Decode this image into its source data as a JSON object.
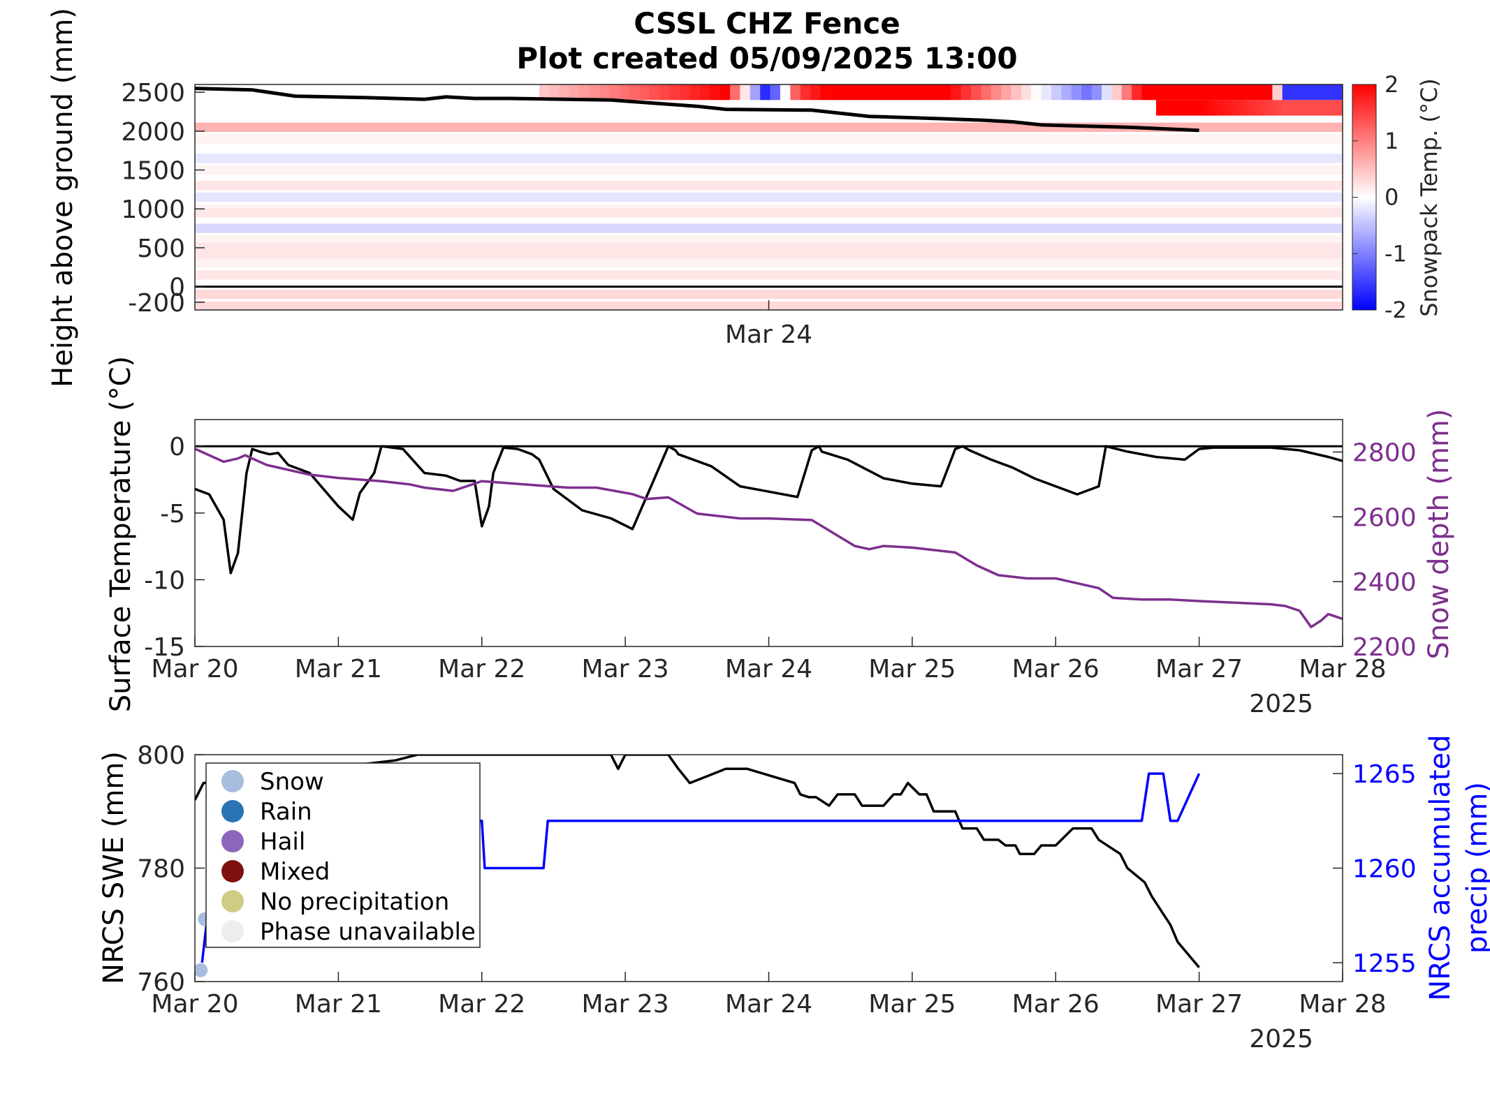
{
  "header": {
    "title_line1": "CSSL CHZ Fence",
    "title_line2": "Plot created 05/09/2025 13:00"
  },
  "chart_data": [
    {
      "type": "heatmap",
      "panel": "snowpack-temperature",
      "xlabel": "",
      "x_tick_labels": [
        "Mar 24"
      ],
      "ylabel": "Height above ground (mm)",
      "yticks": [
        2500,
        2000,
        1500,
        1000,
        500,
        0,
        -200
      ],
      "ylim": [
        -300,
        2600
      ],
      "xlim": [
        0,
        8
      ],
      "grid": false,
      "colorbar": {
        "label": "Snowpack Temp. (°C)",
        "range": [
          -2,
          2
        ],
        "ticks": [
          2,
          1,
          0,
          -1,
          -2
        ],
        "colors": {
          "cold": "#0000ff",
          "zero": "#ffffff",
          "warm": "#ff0000"
        }
      },
      "snow_surface": {
        "color": "#000000",
        "days": [
          0,
          0.4,
          0.7,
          1.2,
          1.6,
          1.75,
          1.95,
          2.2,
          2.9,
          3.5,
          3.7,
          4.3,
          4.7,
          5.2,
          5.5,
          5.7,
          5.9,
          6.5,
          7.0
        ],
        "height_mm": [
          2550,
          2530,
          2450,
          2430,
          2410,
          2440,
          2420,
          2420,
          2400,
          2320,
          2280,
          2270,
          2190,
          2160,
          2140,
          2120,
          2080,
          2050,
          2010
        ]
      },
      "ground_line_mm": 0,
      "upper_band": {
        "days": [
          2.4,
          3.4,
          3.7,
          4.0,
          4.2,
          4.4,
          5.25,
          6.25,
          6.6,
          7.5,
          7.6,
          8.0
        ],
        "temp_c": [
          0.4,
          1.6,
          2.0,
          -2.0,
          1.5,
          2.0,
          2.0,
          -1.2,
          2.0,
          2.0,
          -1.6,
          -1.6
        ]
      },
      "layers": [
        {
          "height_mm": 2050,
          "temp_c": 0.6
        },
        {
          "height_mm": 1900,
          "temp_c": 0.1
        },
        {
          "height_mm": 1650,
          "temp_c": -0.2
        },
        {
          "height_mm": 1500,
          "temp_c": 0.1
        },
        {
          "height_mm": 1300,
          "temp_c": 0.2
        },
        {
          "height_mm": 1150,
          "temp_c": -0.2
        },
        {
          "height_mm": 1000,
          "temp_c": 0.1
        },
        {
          "height_mm": 950,
          "temp_c": 0.2
        },
        {
          "height_mm": 750,
          "temp_c": -0.3
        },
        {
          "height_mm": 600,
          "temp_c": 0.1
        },
        {
          "height_mm": 500,
          "temp_c": 0.2
        },
        {
          "height_mm": 400,
          "temp_c": 0.2
        },
        {
          "height_mm": 300,
          "temp_c": 0.1
        },
        {
          "height_mm": 150,
          "temp_c": 0.2
        },
        {
          "height_mm": -100,
          "temp_c": 0.3
        },
        {
          "height_mm": -250,
          "temp_c": 0.3
        }
      ]
    },
    {
      "type": "line",
      "panel": "surface-temperature-snow-depth",
      "x_tick_labels": [
        "Mar 20",
        "Mar 21",
        "Mar 22",
        "Mar 23",
        "Mar 24",
        "Mar 25",
        "Mar 26",
        "Mar 27",
        "Mar 28"
      ],
      "year_label": "2025",
      "xlim": [
        0,
        8
      ],
      "y_left": {
        "label": "Surface Temperature (°C)",
        "ticks": [
          0,
          -5,
          -10,
          -15
        ],
        "lim": [
          -15,
          2
        ]
      },
      "y_right": {
        "label": "Snow depth (mm)",
        "ticks": [
          2800,
          2600,
          2400,
          2200
        ],
        "lim": [
          2200,
          2900
        ],
        "color": "#7e2f8e"
      },
      "zero_line": 0,
      "grid": false,
      "series": [
        {
          "axis": "left",
          "color": "#000000",
          "days": [
            0,
            0.1,
            0.2,
            0.25,
            0.3,
            0.36,
            0.4,
            0.45,
            0.52,
            0.58,
            0.65,
            0.8,
            1.0,
            1.1,
            1.15,
            1.25,
            1.3,
            1.45,
            1.6,
            1.75,
            1.85,
            1.95,
            2.0,
            2.05,
            2.08,
            2.15,
            2.25,
            2.35,
            2.4,
            2.5,
            2.7,
            2.9,
            3.05,
            3.2,
            3.3,
            3.35,
            3.37,
            3.6,
            3.8,
            4.0,
            4.2,
            4.3,
            4.35,
            4.37,
            4.55,
            4.8,
            5.0,
            5.2,
            5.3,
            5.35,
            5.4,
            5.55,
            5.7,
            5.85,
            6.0,
            6.15,
            6.3,
            6.35,
            6.5,
            6.7,
            6.9,
            7.0,
            7.1,
            7.5,
            7.7,
            7.9,
            8.0
          ],
          "values": [
            -3.2,
            -3.6,
            -5.5,
            -9.5,
            -8.0,
            -2.0,
            -0.2,
            -0.4,
            -0.6,
            -0.5,
            -1.4,
            -2.0,
            -4.5,
            -5.5,
            -3.5,
            -2.0,
            0.0,
            -0.2,
            -2.0,
            -2.2,
            -2.6,
            -2.6,
            -6.0,
            -4.5,
            -2.0,
            -0.1,
            -0.2,
            -0.6,
            -1.0,
            -3.2,
            -4.8,
            -5.4,
            -6.2,
            -2.5,
            0.0,
            -0.3,
            -0.6,
            -1.5,
            -3.0,
            -3.4,
            -3.8,
            -0.3,
            0.0,
            -0.4,
            -1.0,
            -2.4,
            -2.8,
            -3.0,
            -0.2,
            0.0,
            -0.3,
            -1.0,
            -1.6,
            -2.4,
            -3.0,
            -3.6,
            -3.0,
            0.0,
            -0.4,
            -0.8,
            -1.0,
            -0.2,
            -0.1,
            -0.1,
            -0.3,
            -0.8,
            -1.1
          ]
        },
        {
          "axis": "right",
          "color": "#7e2f8e",
          "days": [
            0,
            0.2,
            0.3,
            0.35,
            0.5,
            0.8,
            1.0,
            1.3,
            1.5,
            1.6,
            1.8,
            2.0,
            2.3,
            2.6,
            2.8,
            3.05,
            3.15,
            3.3,
            3.5,
            3.6,
            3.8,
            4.0,
            4.3,
            4.45,
            4.6,
            4.7,
            4.8,
            5.0,
            5.3,
            5.45,
            5.6,
            5.8,
            6.0,
            6.3,
            6.4,
            6.6,
            6.8,
            7.0,
            7.5,
            7.6,
            7.7,
            7.78,
            7.85,
            7.9,
            8.0
          ],
          "values": [
            2810,
            2770,
            2780,
            2790,
            2760,
            2730,
            2720,
            2710,
            2700,
            2690,
            2680,
            2710,
            2700,
            2690,
            2690,
            2670,
            2655,
            2660,
            2610,
            2605,
            2595,
            2595,
            2590,
            2550,
            2510,
            2500,
            2510,
            2505,
            2490,
            2450,
            2420,
            2410,
            2410,
            2380,
            2350,
            2345,
            2345,
            2340,
            2330,
            2325,
            2310,
            2260,
            2280,
            2300,
            2285
          ]
        }
      ]
    },
    {
      "type": "line",
      "panel": "nrcs-swe-precip",
      "x_tick_labels": [
        "Mar 20",
        "Mar 21",
        "Mar 22",
        "Mar 23",
        "Mar 24",
        "Mar 25",
        "Mar 26",
        "Mar 27",
        "Mar 28"
      ],
      "year_label": "2025",
      "xlim": [
        0,
        8
      ],
      "y_left": {
        "label": "NRCS SWE (mm)",
        "ticks": [
          800,
          780,
          760
        ],
        "lim": [
          760,
          800
        ]
      },
      "y_right": {
        "label_line1": "NRCS accumulated",
        "label_line2": "precip (mm)",
        "ticks": [
          1265,
          1260,
          1255
        ],
        "lim": [
          1254,
          1266
        ],
        "color": "#0000ff"
      },
      "grid": false,
      "series": [
        {
          "axis": "left",
          "color": "#000000",
          "days": [
            0,
            0.06,
            1.4,
            1.55,
            1.6,
            2.05,
            2.9,
            2.95,
            3.0,
            3.3,
            3.37,
            3.45,
            3.7,
            3.85,
            4.18,
            4.22,
            4.28,
            4.33,
            4.42,
            4.48,
            4.6,
            4.65,
            4.8,
            4.87,
            4.92,
            4.97,
            5.05,
            5.1,
            5.15,
            5.3,
            5.35,
            5.45,
            5.5,
            5.6,
            5.65,
            5.72,
            5.75,
            5.85,
            5.9,
            6.0,
            6.12,
            6.25,
            6.3,
            6.45,
            6.5,
            6.62,
            6.67,
            6.8,
            6.85,
            7.0
          ],
          "values": [
            792,
            795,
            799,
            800,
            800,
            800,
            800,
            797.5,
            800,
            800,
            797.5,
            795,
            797.5,
            797.5,
            795,
            793,
            792.5,
            792.5,
            791,
            793,
            793,
            791,
            791,
            793,
            793,
            795,
            793,
            793,
            790,
            790,
            787,
            787,
            785,
            785,
            784,
            784,
            782.5,
            782.5,
            784,
            784,
            787,
            787,
            785,
            782.5,
            780,
            777.5,
            775,
            770,
            767,
            762.5
          ]
        },
        {
          "axis": "right",
          "color": "#0000ff",
          "days": [
            0.05,
            0.08,
            0.12,
            2.0,
            2.02,
            2.43,
            2.46,
            6.6,
            6.65,
            6.75,
            6.8,
            6.85,
            7.0
          ],
          "values": [
            1255,
            1257,
            1262,
            1262.5,
            1260,
            1260,
            1262.5,
            1262.5,
            1265,
            1265,
            1262.5,
            1262.5,
            1265
          ]
        }
      ],
      "markers": [
        {
          "day": 0.04,
          "value": 762,
          "phase": "Snow"
        },
        {
          "day": 0.07,
          "value": 771,
          "phase": "Snow"
        }
      ],
      "legend": {
        "placement": "top-left",
        "items": [
          {
            "label": "Snow",
            "color": "#a7bddd"
          },
          {
            "label": "Rain",
            "color": "#2a73b4"
          },
          {
            "label": "Hail",
            "color": "#8b66ba"
          },
          {
            "label": "Mixed",
            "color": "#7d1112"
          },
          {
            "label": "No precipitation",
            "color": "#cfcc86"
          },
          {
            "label": "Phase unavailable",
            "color": "#ededed"
          }
        ]
      }
    }
  ]
}
